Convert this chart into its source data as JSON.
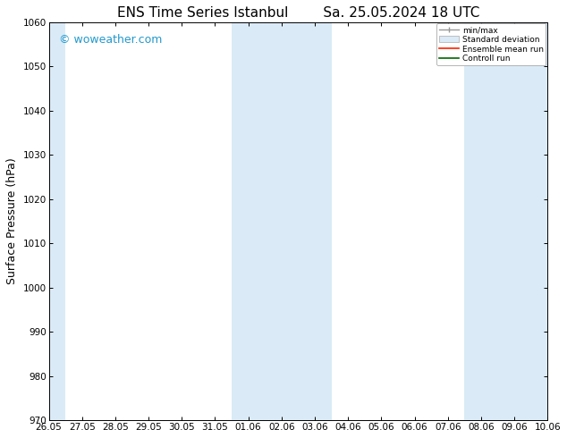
{
  "title_left": "ENS Time Series Istanbul",
  "title_right": "Sa. 25.05.2024 18 UTC",
  "ylabel": "Surface Pressure (hPa)",
  "ylim": [
    970,
    1060
  ],
  "yticks": [
    970,
    980,
    990,
    1000,
    1010,
    1020,
    1030,
    1040,
    1050,
    1060
  ],
  "x_tick_labels": [
    "26.05",
    "27.05",
    "28.05",
    "29.05",
    "30.05",
    "31.05",
    "01.06",
    "02.06",
    "03.06",
    "04.06",
    "05.06",
    "06.06",
    "07.06",
    "08.06",
    "09.06",
    "10.06"
  ],
  "background_color": "#ffffff",
  "plot_bg_color": "#ffffff",
  "shaded_band_color": "#daeaf7",
  "watermark_text": "© woweather.com",
  "watermark_color": "#2299cc",
  "legend_labels": [
    "min/max",
    "Standard deviation",
    "Ensemble mean run",
    "Controll run"
  ],
  "title_fontsize": 11,
  "tick_fontsize": 7.5,
  "ylabel_fontsize": 9,
  "watermark_fontsize": 9
}
